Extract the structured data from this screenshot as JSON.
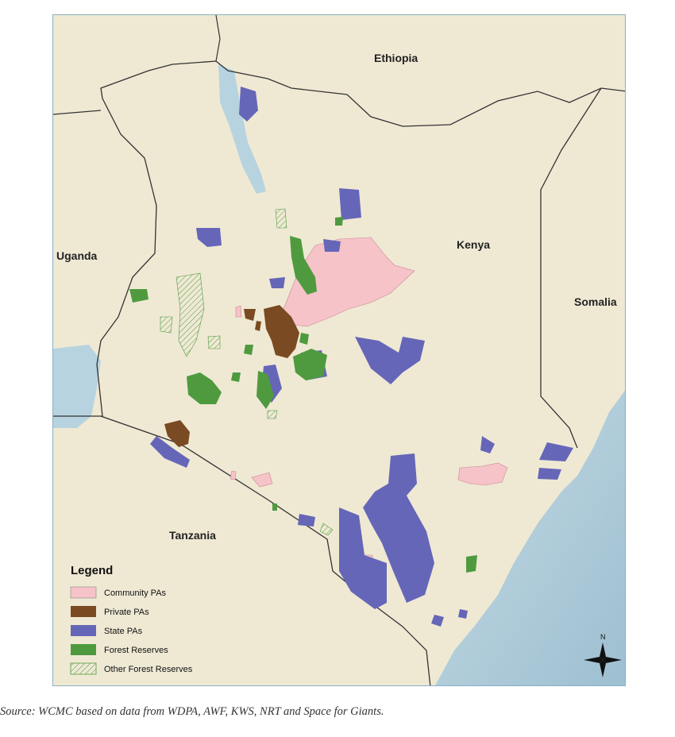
{
  "map": {
    "countries": {
      "ethiopia": "Ethiopia",
      "kenya": "Kenya",
      "uganda": "Uganda",
      "somalia": "Somalia",
      "tanzania": "Tanzania"
    },
    "legend": {
      "title": "Legend",
      "items": [
        {
          "label": "Community PAs",
          "color": "#f5c3c8"
        },
        {
          "label": "Private PAs",
          "color": "#7a4a22"
        },
        {
          "label": "State PAs",
          "color": "#6666b8"
        },
        {
          "label": "Forest Reserves",
          "color": "#4f9a3f"
        },
        {
          "label": "Other Forest Reserves",
          "color": "#4f9a3f",
          "pattern": "hatched"
        }
      ]
    },
    "north_arrow_label": "N",
    "colors": {
      "land": "#efe9d4",
      "water": "#b7d3df",
      "border": "#333333"
    }
  },
  "source_note": "Source: WCMC based on data from WDPA, AWF, KWS, NRT and Space for Giants."
}
